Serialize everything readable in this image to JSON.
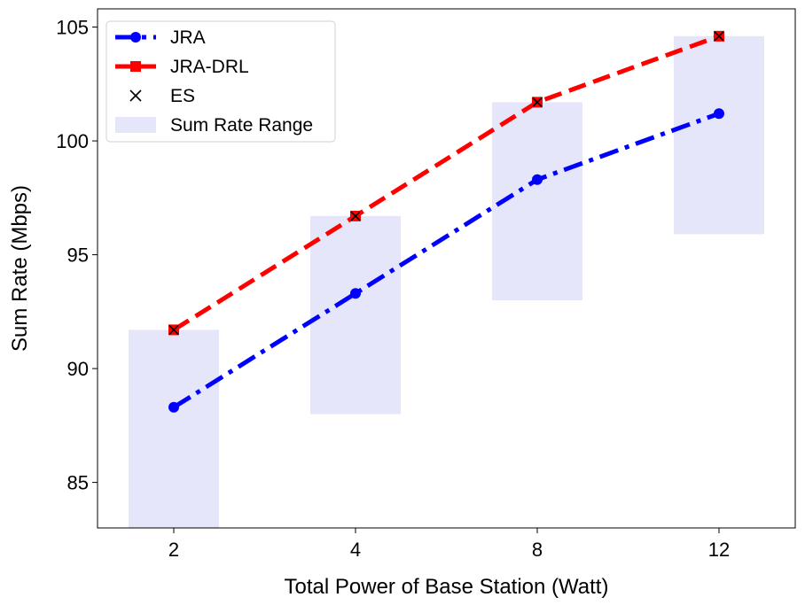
{
  "chart_data": {
    "type": "line",
    "title": "",
    "xlabel": "Total Power of Base Station (Watt)",
    "ylabel": "Sum Rate (Mbps)",
    "categories": [
      "2",
      "4",
      "8",
      "12"
    ],
    "ylim": [
      83,
      105.8
    ],
    "yticks": [
      85,
      90,
      95,
      100,
      105
    ],
    "grid": false,
    "legend_position": "top-left",
    "series": [
      {
        "name": "JRA",
        "values": [
          88.3,
          93.3,
          98.3,
          101.2
        ],
        "color": "#0000ff",
        "style": "dashdot",
        "marker": "circle"
      },
      {
        "name": "JRA-DRL",
        "values": [
          91.7,
          96.7,
          101.7,
          104.6
        ],
        "color": "#ff0000",
        "style": "dashed",
        "marker": "square"
      },
      {
        "name": "ES",
        "values": [
          91.7,
          96.7,
          101.7,
          104.6
        ],
        "color": "#000000",
        "style": "none",
        "marker": "x"
      }
    ],
    "range": {
      "name": "Sum Rate Range",
      "color": "#e6e6fa",
      "low": [
        83,
        88,
        93,
        95.9
      ],
      "high": [
        91.7,
        96.7,
        101.7,
        104.6
      ]
    }
  }
}
